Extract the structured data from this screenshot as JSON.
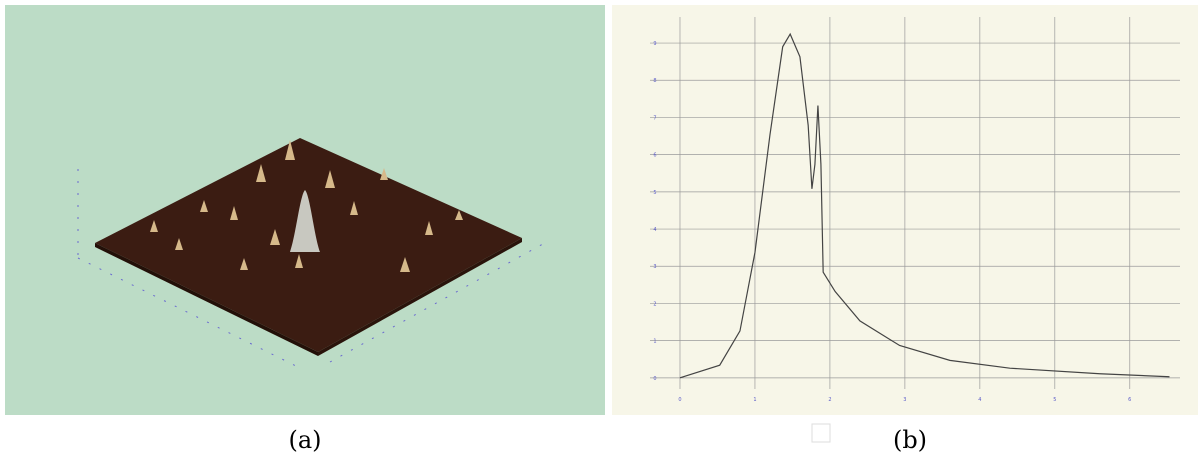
{
  "figure": {
    "panels": [
      {
        "label": "(a)"
      },
      {
        "label": "(b)"
      }
    ]
  },
  "chart_data": {
    "type": "line",
    "color": "#444444",
    "grid": true,
    "x": [
      0,
      0.53,
      0.8,
      1.0,
      1.2,
      1.37,
      1.47,
      1.6,
      1.71,
      1.76,
      1.8,
      1.84,
      1.88,
      1.91,
      2.07,
      2.4,
      2.93,
      3.6,
      4.4,
      5.6,
      6.53
    ],
    "values": [
      0,
      0.34,
      1.26,
      3.37,
      6.53,
      8.9,
      9.24,
      8.63,
      6.79,
      5.08,
      5.74,
      7.32,
      5.74,
      2.84,
      2.32,
      1.53,
      0.87,
      0.47,
      0.26,
      0.11,
      0.03
    ],
    "xlim": [
      -0.4,
      6.67
    ],
    "ylim": [
      -0.3,
      9.7
    ],
    "xticks": [
      0,
      1,
      2,
      3,
      4,
      5,
      6
    ],
    "yticks": [
      0,
      1,
      2,
      3,
      4,
      5,
      6,
      7,
      8,
      9
    ]
  }
}
